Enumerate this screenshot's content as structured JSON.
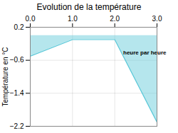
{
  "chart_data": {
    "type": "area",
    "title": "Evolution de la température",
    "ylabel": "Température en °C",
    "x": [
      0,
      1,
      2,
      3
    ],
    "values": [
      -0.5,
      -0.1,
      -0.1,
      -2.1
    ],
    "color": "#5bc8d8",
    "xlim": [
      0,
      3
    ],
    "ylim": [
      -2.2,
      0.2
    ],
    "xticks": [
      0,
      1,
      2,
      3
    ],
    "yticks": [
      0.2,
      -0.6,
      -1.4,
      -2.2
    ],
    "grid": true,
    "annotations": [
      {
        "text": "heure par heure",
        "x": 2.2,
        "y": -0.42
      }
    ]
  }
}
